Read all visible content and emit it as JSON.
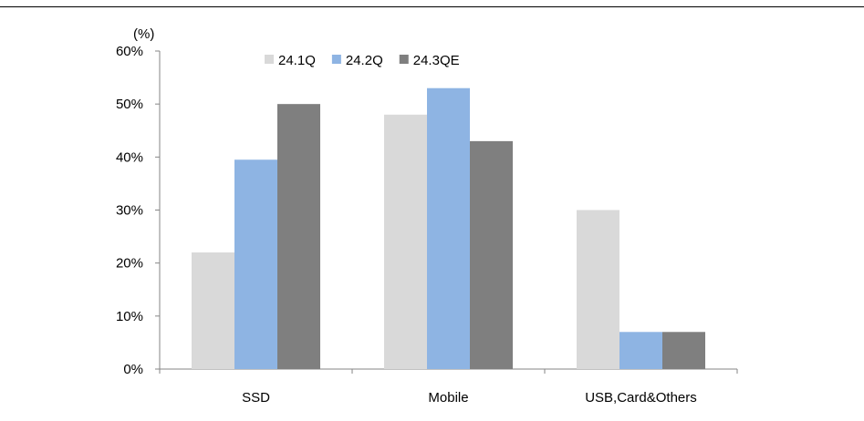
{
  "chart_data": {
    "type": "bar",
    "unit_label": "(%)",
    "categories": [
      "SSD",
      "Mobile",
      "USB,Card&Others"
    ],
    "series": [
      {
        "name": "24.1Q",
        "values": [
          22,
          48,
          30
        ],
        "color": "#d9d9d9"
      },
      {
        "name": "24.2Q",
        "values": [
          39.5,
          53,
          7
        ],
        "color": "#8eb4e3"
      },
      {
        "name": "24.3QE",
        "values": [
          50,
          43,
          7
        ],
        "color": "#7f7f7f"
      }
    ],
    "y_ticks": [
      "0%",
      "10%",
      "20%",
      "30%",
      "40%",
      "50%",
      "60%"
    ],
    "ylim": [
      0,
      60
    ],
    "grid": false,
    "legend_position": "top"
  }
}
